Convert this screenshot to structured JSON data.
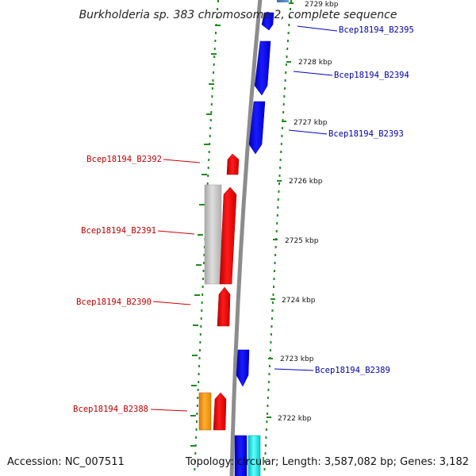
{
  "title": "Burkholderia sp. 383 chromosome 2, complete sequence",
  "accession": "Accession: NC_007511",
  "topology": "Topology: circular; Length: 3,587,082 bp; Genes: 3,182",
  "colors": {
    "backbone": "#8c8c8c",
    "tick": "#1f8a1f",
    "forward_gene": "#0000ee",
    "reverse_gene": "#ee0000",
    "forward_label": "#0000aa",
    "reverse_label": "#bb0000",
    "pseudo_gene": "#c4c4c4",
    "orange_gene": "#ff9900",
    "cyan_gene": "#00e5e5"
  },
  "scale_ticks": [
    "2729 kbp",
    "2728 kbp",
    "2727 kbp",
    "2726 kbp",
    "2725 kbp",
    "2724 kbp",
    "2723 kbp",
    "2722 kbp"
  ],
  "gene_labels": {
    "forward": [
      "Bcep18194_B2395",
      "Bcep18194_B2394",
      "Bcep18194_B2393",
      "Bcep18194_B2389"
    ],
    "reverse": [
      "Bcep18194_B2392",
      "Bcep18194_B2391",
      "Bcep18194_B2390",
      "Bcep18194_B2388"
    ]
  }
}
